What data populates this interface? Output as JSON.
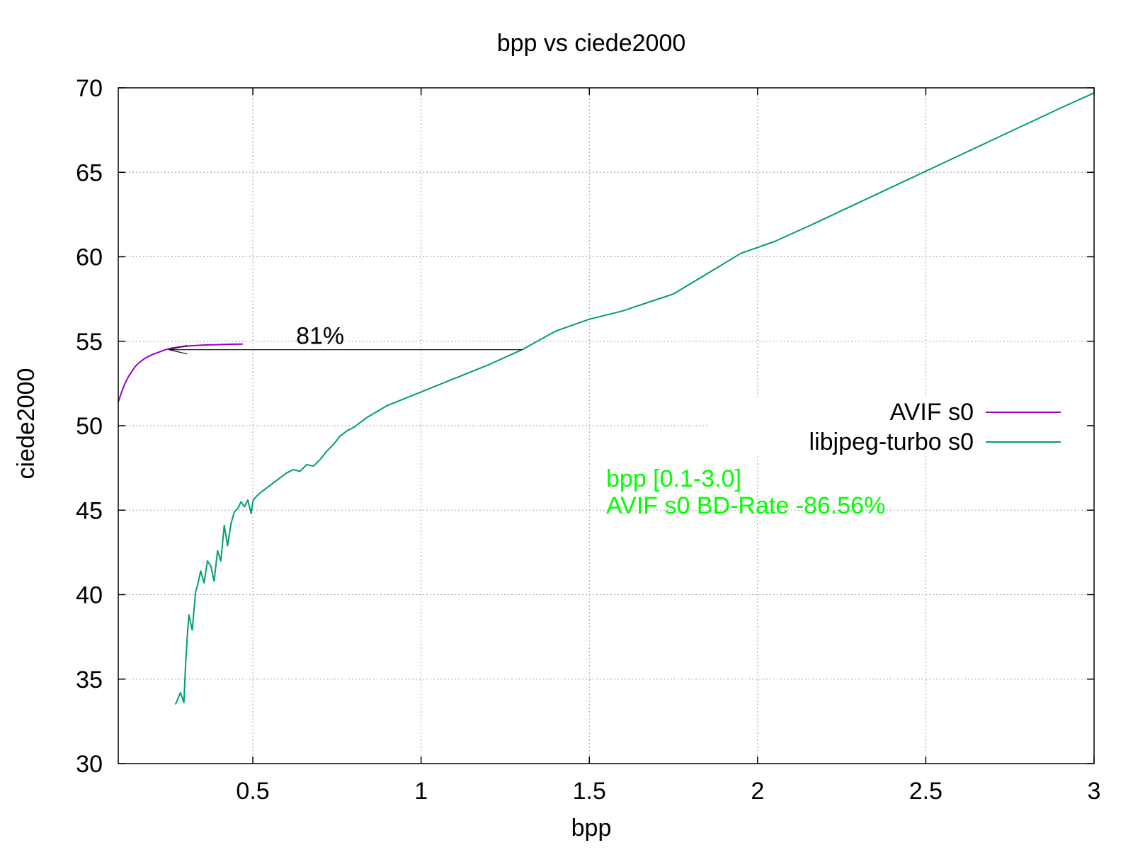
{
  "chart_data": {
    "type": "line",
    "title": "bpp vs ciede2000",
    "xlabel": "bpp",
    "ylabel": "ciede2000",
    "xlim": [
      0.1,
      3.0
    ],
    "ylim": [
      30,
      70
    ],
    "xticks": [
      0.5,
      1,
      1.5,
      2,
      2.5,
      3
    ],
    "xtick_labels": [
      "0.5",
      "1",
      "1.5",
      "2",
      "2.5",
      "3"
    ],
    "yticks": [
      30,
      35,
      40,
      45,
      50,
      55,
      60,
      65,
      70
    ],
    "ytick_labels": [
      "30",
      "35",
      "40",
      "45",
      "50",
      "55",
      "60",
      "65",
      "70"
    ],
    "grid": true,
    "legend_position": "right",
    "series": [
      {
        "name": "AVIF s0",
        "color": "#9400d3",
        "x": [
          0.1,
          0.11,
          0.12,
          0.13,
          0.14,
          0.15,
          0.16,
          0.18,
          0.2,
          0.22,
          0.24,
          0.26,
          0.28,
          0.3,
          0.33,
          0.36,
          0.4,
          0.43,
          0.47
        ],
        "y": [
          51.4,
          52.0,
          52.5,
          52.9,
          53.2,
          53.5,
          53.7,
          54.0,
          54.2,
          54.35,
          54.5,
          54.6,
          54.65,
          54.7,
          54.75,
          54.78,
          54.8,
          54.82,
          54.83
        ]
      },
      {
        "name": "libjpeg-turbo s0",
        "color": "#009e73",
        "x": [
          0.27,
          0.285,
          0.295,
          0.3,
          0.305,
          0.31,
          0.32,
          0.33,
          0.335,
          0.345,
          0.355,
          0.365,
          0.375,
          0.385,
          0.395,
          0.405,
          0.415,
          0.425,
          0.435,
          0.445,
          0.455,
          0.465,
          0.475,
          0.485,
          0.495,
          0.5,
          0.505,
          0.52,
          0.54,
          0.56,
          0.58,
          0.6,
          0.62,
          0.64,
          0.66,
          0.68,
          0.7,
          0.72,
          0.74,
          0.76,
          0.78,
          0.8,
          0.82,
          0.84,
          0.9,
          1.0,
          1.1,
          1.2,
          1.3,
          1.4,
          1.5,
          1.6,
          1.75,
          1.85,
          1.95,
          2.05,
          2.15,
          2.3,
          2.45,
          2.6,
          2.75,
          2.9,
          3.0
        ],
        "y": [
          33.5,
          34.2,
          33.6,
          35.8,
          37.5,
          38.8,
          37.9,
          40.2,
          40.5,
          41.4,
          40.7,
          42.0,
          41.7,
          40.8,
          42.6,
          42.0,
          44.1,
          42.9,
          44.2,
          44.9,
          45.1,
          45.5,
          45.2,
          45.6,
          44.8,
          45.5,
          45.7,
          46.0,
          46.3,
          46.6,
          46.9,
          47.2,
          47.4,
          47.3,
          47.7,
          47.6,
          48.0,
          48.5,
          48.9,
          49.4,
          49.7,
          49.9,
          50.2,
          50.5,
          51.2,
          52.0,
          52.8,
          53.6,
          54.5,
          55.6,
          56.3,
          56.8,
          57.8,
          59.0,
          60.2,
          60.9,
          61.8,
          63.2,
          64.6,
          66.0,
          67.4,
          68.8,
          69.7
        ]
      }
    ],
    "annotations": {
      "arrow": {
        "x_from": 1.3,
        "x_to": 0.25,
        "y": 54.5,
        "label": "81%",
        "label_x": 0.7,
        "label_y": 54.5
      },
      "info_lines": [
        "bpp [0.1-3.0]",
        "AVIF s0 BD-Rate -86.56%"
      ],
      "info_color": "#00ff00",
      "info_x": 1.55,
      "info_y": 46.4
    }
  }
}
